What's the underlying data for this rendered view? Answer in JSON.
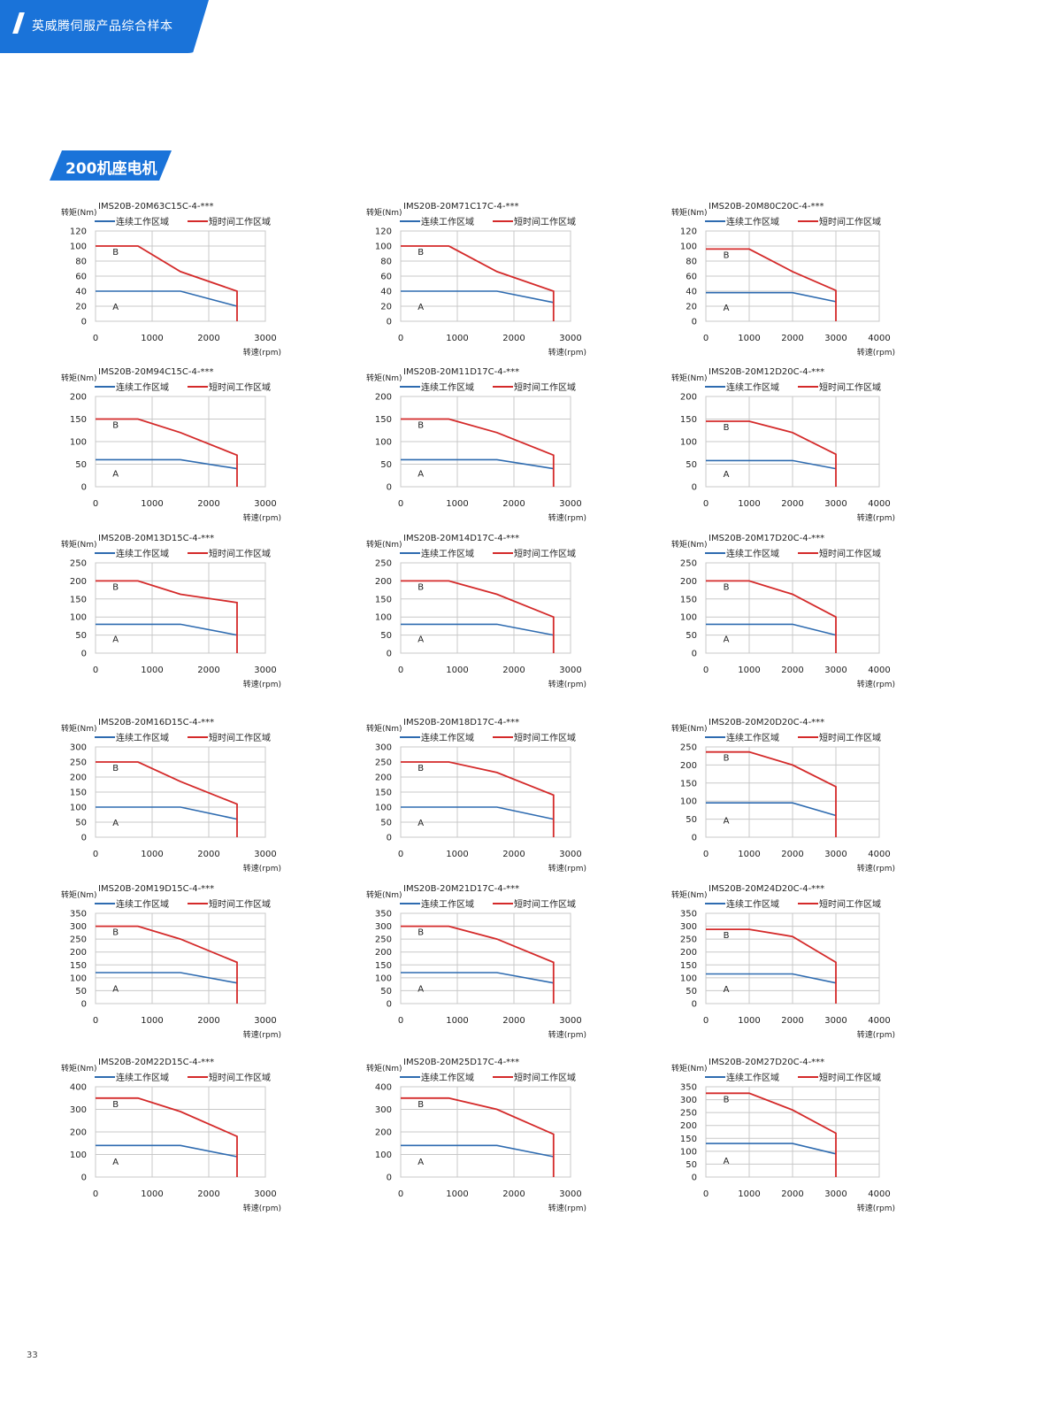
{
  "header": {
    "title": "英威腾伺服产品综合样本"
  },
  "section": {
    "title": "200机座电机"
  },
  "page_number": "33",
  "labels": {
    "y_label": "转矩(Nm)",
    "x_label": "转速(rpm)",
    "legend_continuous": "连续工作区域",
    "legend_short": "短时间工作区域",
    "region_a": "A",
    "region_b": "B"
  },
  "colors": {
    "accent": "#1a73d9",
    "continuous": "#2e6bb0",
    "short": "#d42a2a",
    "grid": "#c8c8c8"
  },
  "chart_data": [
    {
      "type": "line",
      "title": "IMS20B-20M63C15C-4-***",
      "xlim": [
        0,
        3000
      ],
      "xticks": [
        0,
        1000,
        2000,
        3000
      ],
      "ylim": [
        0,
        120
      ],
      "yticks": [
        0,
        20,
        40,
        60,
        80,
        100,
        120
      ],
      "series": [
        {
          "name": "连续工作区域",
          "x": [
            0,
            1500,
            2500
          ],
          "y": [
            40,
            40,
            20
          ]
        },
        {
          "name": "短时间工作区域",
          "x": [
            0,
            750,
            1500,
            2500,
            2500
          ],
          "y": [
            100,
            100,
            66,
            40,
            0
          ]
        }
      ]
    },
    {
      "type": "line",
      "title": "IMS20B-20M71C17C-4-***",
      "xlim": [
        0,
        3000
      ],
      "xticks": [
        0,
        1000,
        2000,
        3000
      ],
      "ylim": [
        0,
        120
      ],
      "yticks": [
        0,
        20,
        40,
        60,
        80,
        100,
        120
      ],
      "series": [
        {
          "name": "连续工作区域",
          "x": [
            0,
            1700,
            2700
          ],
          "y": [
            40,
            40,
            25
          ]
        },
        {
          "name": "短时间工作区域",
          "x": [
            0,
            850,
            1700,
            2700,
            2700
          ],
          "y": [
            100,
            100,
            66,
            40,
            0
          ]
        }
      ]
    },
    {
      "type": "line",
      "title": "IMS20B-20M80C20C-4-***",
      "xlim": [
        0,
        4000
      ],
      "xticks": [
        0,
        1000,
        2000,
        3000,
        4000
      ],
      "ylim": [
        0,
        120
      ],
      "yticks": [
        0,
        20,
        40,
        60,
        80,
        100,
        120
      ],
      "series": [
        {
          "name": "连续工作区域",
          "x": [
            0,
            2000,
            3000
          ],
          "y": [
            38,
            38,
            26
          ]
        },
        {
          "name": "短时间工作区域",
          "x": [
            0,
            1000,
            2000,
            3000,
            3000
          ],
          "y": [
            96,
            96,
            66,
            41,
            0
          ]
        }
      ]
    },
    {
      "type": "line",
      "title": "IMS20B-20M94C15C-4-***",
      "xlim": [
        0,
        3000
      ],
      "xticks": [
        0,
        1000,
        2000,
        3000
      ],
      "ylim": [
        0,
        200
      ],
      "yticks": [
        0,
        50,
        100,
        150,
        200
      ],
      "series": [
        {
          "name": "连续工作区域",
          "x": [
            0,
            1500,
            2500
          ],
          "y": [
            60,
            60,
            40
          ]
        },
        {
          "name": "短时间工作区域",
          "x": [
            0,
            750,
            1500,
            2500,
            2500
          ],
          "y": [
            150,
            150,
            120,
            70,
            0
          ]
        }
      ]
    },
    {
      "type": "line",
      "title": "IMS20B-20M11D17C-4-***",
      "xlim": [
        0,
        3000
      ],
      "xticks": [
        0,
        1000,
        2000,
        3000
      ],
      "ylim": [
        0,
        200
      ],
      "yticks": [
        0,
        50,
        100,
        150,
        200
      ],
      "series": [
        {
          "name": "连续工作区域",
          "x": [
            0,
            1700,
            2700
          ],
          "y": [
            60,
            60,
            40
          ]
        },
        {
          "name": "短时间工作区域",
          "x": [
            0,
            850,
            1700,
            2700,
            2700
          ],
          "y": [
            150,
            150,
            120,
            70,
            0
          ]
        }
      ]
    },
    {
      "type": "line",
      "title": "IMS20B-20M12D20C-4-***",
      "xlim": [
        0,
        4000
      ],
      "xticks": [
        0,
        1000,
        2000,
        3000,
        4000
      ],
      "ylim": [
        0,
        200
      ],
      "yticks": [
        0,
        50,
        100,
        150,
        200
      ],
      "series": [
        {
          "name": "连续工作区域",
          "x": [
            0,
            2000,
            3000
          ],
          "y": [
            58,
            58,
            40
          ]
        },
        {
          "name": "短时间工作区域",
          "x": [
            0,
            1000,
            2000,
            3000,
            3000
          ],
          "y": [
            145,
            145,
            120,
            72,
            0
          ]
        }
      ]
    },
    {
      "type": "line",
      "title": "IMS20B-20M13D15C-4-***",
      "xlim": [
        0,
        3000
      ],
      "xticks": [
        0,
        1000,
        2000,
        3000
      ],
      "ylim": [
        0,
        250
      ],
      "yticks": [
        0,
        50,
        100,
        150,
        200,
        250
      ],
      "series": [
        {
          "name": "连续工作区域",
          "x": [
            0,
            1500,
            2500
          ],
          "y": [
            80,
            80,
            50
          ]
        },
        {
          "name": "短时间工作区域",
          "x": [
            0,
            750,
            1500,
            2500,
            2500
          ],
          "y": [
            200,
            200,
            163,
            140,
            0
          ]
        }
      ]
    },
    {
      "type": "line",
      "title": "IMS20B-20M14D17C-4-***",
      "xlim": [
        0,
        3000
      ],
      "xticks": [
        0,
        1000,
        2000,
        3000
      ],
      "ylim": [
        0,
        250
      ],
      "yticks": [
        0,
        50,
        100,
        150,
        200,
        250
      ],
      "series": [
        {
          "name": "连续工作区域",
          "x": [
            0,
            1700,
            2700
          ],
          "y": [
            80,
            80,
            50
          ]
        },
        {
          "name": "短时间工作区域",
          "x": [
            0,
            850,
            1700,
            2700,
            2700
          ],
          "y": [
            200,
            200,
            163,
            100,
            0
          ]
        }
      ]
    },
    {
      "type": "line",
      "title": "IMS20B-20M17D20C-4-***",
      "xlim": [
        0,
        4000
      ],
      "xticks": [
        0,
        1000,
        2000,
        3000,
        4000
      ],
      "ylim": [
        0,
        250
      ],
      "yticks": [
        0,
        50,
        100,
        150,
        200,
        250
      ],
      "series": [
        {
          "name": "连续工作区域",
          "x": [
            0,
            2000,
            3000
          ],
          "y": [
            80,
            80,
            50
          ]
        },
        {
          "name": "短时间工作区域",
          "x": [
            0,
            1000,
            2000,
            3000,
            3000
          ],
          "y": [
            200,
            200,
            163,
            100,
            0
          ]
        }
      ]
    },
    {
      "type": "line",
      "title": "IMS20B-20M16D15C-4-***",
      "xlim": [
        0,
        3000
      ],
      "xticks": [
        0,
        1000,
        2000,
        3000
      ],
      "ylim": [
        0,
        300
      ],
      "yticks": [
        0,
        50,
        100,
        150,
        200,
        250,
        300
      ],
      "series": [
        {
          "name": "连续工作区域",
          "x": [
            0,
            1500,
            2500
          ],
          "y": [
            100,
            100,
            60
          ]
        },
        {
          "name": "短时间工作区域",
          "x": [
            0,
            750,
            1500,
            2500,
            2500
          ],
          "y": [
            250,
            250,
            185,
            110,
            0
          ]
        }
      ]
    },
    {
      "type": "line",
      "title": "IMS20B-20M18D17C-4-***",
      "xlim": [
        0,
        3000
      ],
      "xticks": [
        0,
        1000,
        2000,
        3000
      ],
      "ylim": [
        0,
        300
      ],
      "yticks": [
        0,
        50,
        100,
        150,
        200,
        250,
        300
      ],
      "series": [
        {
          "name": "连续工作区域",
          "x": [
            0,
            1700,
            2700
          ],
          "y": [
            100,
            100,
            60
          ]
        },
        {
          "name": "短时间工作区域",
          "x": [
            0,
            850,
            1700,
            2700,
            2700
          ],
          "y": [
            250,
            250,
            215,
            140,
            0
          ]
        }
      ]
    },
    {
      "type": "line",
      "title": "IMS20B-20M20D20C-4-***",
      "xlim": [
        0,
        4000
      ],
      "xticks": [
        0,
        1000,
        2000,
        3000,
        4000
      ],
      "ylim": [
        0,
        250
      ],
      "yticks": [
        0,
        50,
        100,
        150,
        200,
        250
      ],
      "series": [
        {
          "name": "连续工作区域",
          "x": [
            0,
            2000,
            3000
          ],
          "y": [
            95,
            95,
            60
          ]
        },
        {
          "name": "短时间工作区域",
          "x": [
            0,
            1000,
            2000,
            3000,
            3000
          ],
          "y": [
            236,
            236,
            200,
            140,
            0
          ]
        }
      ]
    },
    {
      "type": "line",
      "title": "IMS20B-20M19D15C-4-***",
      "xlim": [
        0,
        3000
      ],
      "xticks": [
        0,
        1000,
        2000,
        3000
      ],
      "ylim": [
        0,
        350
      ],
      "yticks": [
        0,
        50,
        100,
        150,
        200,
        250,
        300,
        350
      ],
      "series": [
        {
          "name": "连续工作区域",
          "x": [
            0,
            1500,
            2500
          ],
          "y": [
            120,
            120,
            80
          ]
        },
        {
          "name": "短时间工作区域",
          "x": [
            0,
            750,
            1500,
            2500,
            2500
          ],
          "y": [
            300,
            300,
            250,
            160,
            0
          ]
        }
      ]
    },
    {
      "type": "line",
      "title": "IMS20B-20M21D17C-4-***",
      "xlim": [
        0,
        3000
      ],
      "xticks": [
        0,
        1000,
        2000,
        3000
      ],
      "ylim": [
        0,
        350
      ],
      "yticks": [
        0,
        50,
        100,
        150,
        200,
        250,
        300,
        350
      ],
      "series": [
        {
          "name": "连续工作区域",
          "x": [
            0,
            1700,
            2700
          ],
          "y": [
            120,
            120,
            80
          ]
        },
        {
          "name": "短时间工作区域",
          "x": [
            0,
            850,
            1700,
            2700,
            2700
          ],
          "y": [
            300,
            300,
            250,
            160,
            0
          ]
        }
      ]
    },
    {
      "type": "line",
      "title": "IMS20B-20M24D20C-4-***",
      "xlim": [
        0,
        4000
      ],
      "xticks": [
        0,
        1000,
        2000,
        3000,
        4000
      ],
      "ylim": [
        0,
        350
      ],
      "yticks": [
        0,
        50,
        100,
        150,
        200,
        250,
        300,
        350
      ],
      "series": [
        {
          "name": "连续工作区域",
          "x": [
            0,
            2000,
            3000
          ],
          "y": [
            115,
            115,
            80
          ]
        },
        {
          "name": "短时间工作区域",
          "x": [
            0,
            1000,
            2000,
            3000,
            3000
          ],
          "y": [
            288,
            288,
            260,
            160,
            0
          ]
        }
      ]
    },
    {
      "type": "line",
      "title": "IMS20B-20M22D15C-4-***",
      "xlim": [
        0,
        3000
      ],
      "xticks": [
        0,
        1000,
        2000,
        3000
      ],
      "ylim": [
        0,
        400
      ],
      "yticks": [
        0,
        100,
        200,
        300,
        400
      ],
      "series": [
        {
          "name": "连续工作区域",
          "x": [
            0,
            1500,
            2500
          ],
          "y": [
            140,
            140,
            90
          ]
        },
        {
          "name": "短时间工作区域",
          "x": [
            0,
            750,
            1500,
            2500,
            2500
          ],
          "y": [
            350,
            350,
            290,
            180,
            0
          ]
        }
      ]
    },
    {
      "type": "line",
      "title": "IMS20B-20M25D17C-4-***",
      "xlim": [
        0,
        3000
      ],
      "xticks": [
        0,
        1000,
        2000,
        3000
      ],
      "ylim": [
        0,
        400
      ],
      "yticks": [
        0,
        100,
        200,
        300,
        400
      ],
      "series": [
        {
          "name": "连续工作区域",
          "x": [
            0,
            850,
            1700,
            2700
          ],
          "y": [
            140,
            140,
            140,
            90
          ]
        },
        {
          "name": "短时间工作区域",
          "x": [
            0,
            850,
            1700,
            2700,
            2700
          ],
          "y": [
            350,
            350,
            300,
            190,
            0
          ]
        }
      ]
    },
    {
      "type": "line",
      "title": "IMS20B-20M27D20C-4-***",
      "xlim": [
        0,
        4000
      ],
      "xticks": [
        0,
        1000,
        2000,
        3000,
        4000
      ],
      "ylim": [
        0,
        350
      ],
      "yticks": [
        0,
        50,
        100,
        150,
        200,
        250,
        300,
        350
      ],
      "series": [
        {
          "name": "连续工作区域",
          "x": [
            0,
            2000,
            3000
          ],
          "y": [
            130,
            130,
            90
          ]
        },
        {
          "name": "短时间工作区域",
          "x": [
            0,
            1000,
            2000,
            3000,
            3000
          ],
          "y": [
            325,
            325,
            260,
            170,
            0
          ]
        }
      ]
    }
  ]
}
